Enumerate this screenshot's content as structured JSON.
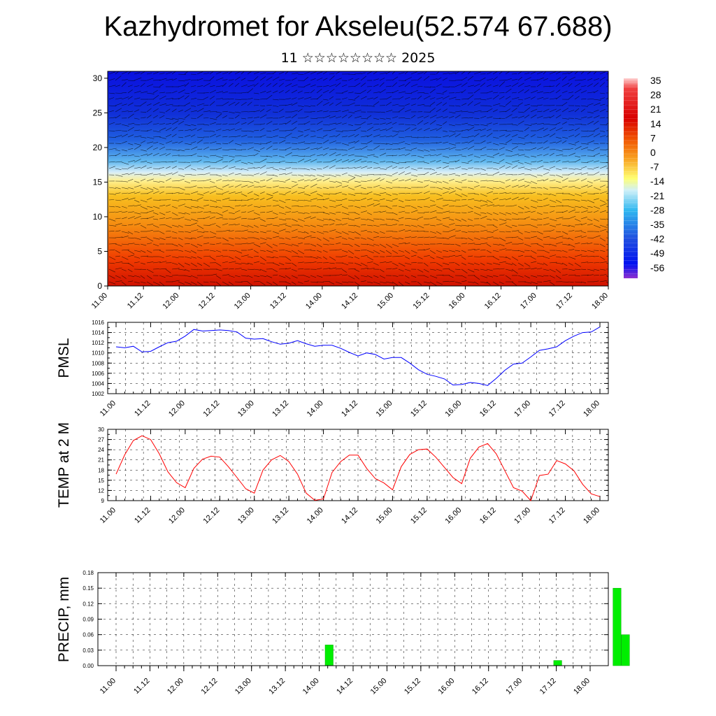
{
  "header": {
    "title": "Kazhydromet for Akseleu(52.574 67.688)",
    "subtitle": "11 ☆☆☆☆☆☆☆☆ 2025"
  },
  "colors": {
    "pmsl_line": "#0000ff",
    "temp_line": "#ff0000",
    "precip_bar": "#00ee00",
    "colorbar_top": "#ffc8c8",
    "colorbar_warm": "#e00000",
    "colorbar_mid": "#ffff60",
    "colorbar_cool": "#30c0f0",
    "colorbar_bottom": "#8020e0"
  },
  "chart_data": [
    {
      "type": "heatmap",
      "title": "",
      "xlabel": "",
      "ylabel": "",
      "x_tick_labels": [
        "11.00",
        "11.12",
        "12.00",
        "12.12",
        "13.00",
        "13.12",
        "14.00",
        "14.12",
        "15.00",
        "15.12",
        "16.00",
        "16.12",
        "17.00",
        "17.12",
        "18.00"
      ],
      "y_ticks": [
        0,
        5,
        10,
        15,
        20,
        25,
        30
      ],
      "ylim": [
        0,
        31
      ],
      "colorbar_labels": [
        "35",
        "28",
        "21",
        "14",
        "7",
        "0",
        "-7",
        "-14",
        "-21",
        "-28",
        "-35",
        "-42",
        "-49",
        "-56"
      ],
      "overlay": "wind barbs"
    },
    {
      "type": "line",
      "ylabel": "PMSL",
      "x_tick_labels": [
        "11.00",
        "11.12",
        "12.00",
        "12.12",
        "13.00",
        "13.12",
        "14.00",
        "14.12",
        "15.00",
        "15.12",
        "16.00",
        "16.12",
        "17.00",
        "17.12",
        "18.00"
      ],
      "y_ticks": [
        1002,
        1004,
        1006,
        1008,
        1010,
        1012,
        1014,
        1016
      ],
      "ylim": [
        1002,
        1016
      ],
      "grid": true,
      "values": [
        1011.2,
        1011.0,
        1011.3,
        1010.2,
        1010.3,
        1011.2,
        1012.0,
        1012.3,
        1013.3,
        1014.6,
        1014.3,
        1014.4,
        1014.5,
        1014.4,
        1014.1,
        1012.9,
        1012.7,
        1012.8,
        1012.2,
        1011.7,
        1011.9,
        1012.4,
        1011.8,
        1011.3,
        1011.5,
        1011.5,
        1010.9,
        1010.1,
        1009.4,
        1010.0,
        1009.7,
        1008.8,
        1009.1,
        1009.1,
        1008.0,
        1006.7,
        1005.8,
        1005.4,
        1004.9,
        1003.7,
        1003.8,
        1004.2,
        1004.0,
        1003.6,
        1005.0,
        1006.6,
        1007.8,
        1008.0,
        1009.2,
        1010.5,
        1010.8,
        1011.2,
        1012.4,
        1013.3,
        1014.0,
        1014.1,
        1015.1
      ]
    },
    {
      "type": "line",
      "ylabel": "TEMP at 2 M",
      "x_tick_labels": [
        "11.00",
        "11.12",
        "12.00",
        "12.12",
        "13.00",
        "13.12",
        "14.00",
        "14.12",
        "15.00",
        "15.12",
        "16.00",
        "16.12",
        "17.00",
        "17.12",
        "18.00"
      ],
      "y_ticks": [
        9,
        12,
        15,
        18,
        21,
        24,
        27,
        30
      ],
      "ylim": [
        9,
        30
      ],
      "grid": true,
      "values": [
        16.8,
        22.5,
        26.7,
        28.1,
        27.0,
        22.8,
        17.5,
        14.3,
        12.8,
        18.5,
        21.2,
        22.1,
        21.8,
        19.0,
        15.8,
        12.5,
        11.2,
        18.0,
        21.0,
        22.3,
        20.5,
        16.8,
        11.2,
        9.1,
        9.5,
        17.3,
        20.5,
        22.4,
        22.4,
        18.5,
        15.5,
        14.2,
        12.2,
        19.0,
        22.6,
        24.0,
        24.2,
        21.8,
        18.8,
        15.8,
        14.0,
        21.5,
        24.8,
        25.8,
        22.8,
        17.8,
        12.8,
        11.8,
        9.0,
        16.4,
        16.8,
        20.8,
        19.8,
        17.8,
        13.8,
        11.0,
        10.2
      ]
    },
    {
      "type": "bar",
      "ylabel": "PRECIP, mm",
      "x_tick_labels": [
        "11.00",
        "11.12",
        "12.00",
        "12.12",
        "13.00",
        "13.12",
        "14.00",
        "14.12",
        "15.00",
        "15.12",
        "16.00",
        "16.12",
        "17.00",
        "17.12",
        "18.00"
      ],
      "y_ticks": [
        "0.00",
        "0.03",
        "0.06",
        "0.09",
        "0.12",
        "0.15",
        "0.18"
      ],
      "ylim": [
        0,
        0.18
      ],
      "grid": true,
      "bars": [
        {
          "x": 25,
          "value": 0.04
        },
        {
          "x": 52,
          "value": 0.01
        },
        {
          "x": 59,
          "value": 0.15
        },
        {
          "x": 60,
          "value": 0.06
        }
      ]
    }
  ]
}
